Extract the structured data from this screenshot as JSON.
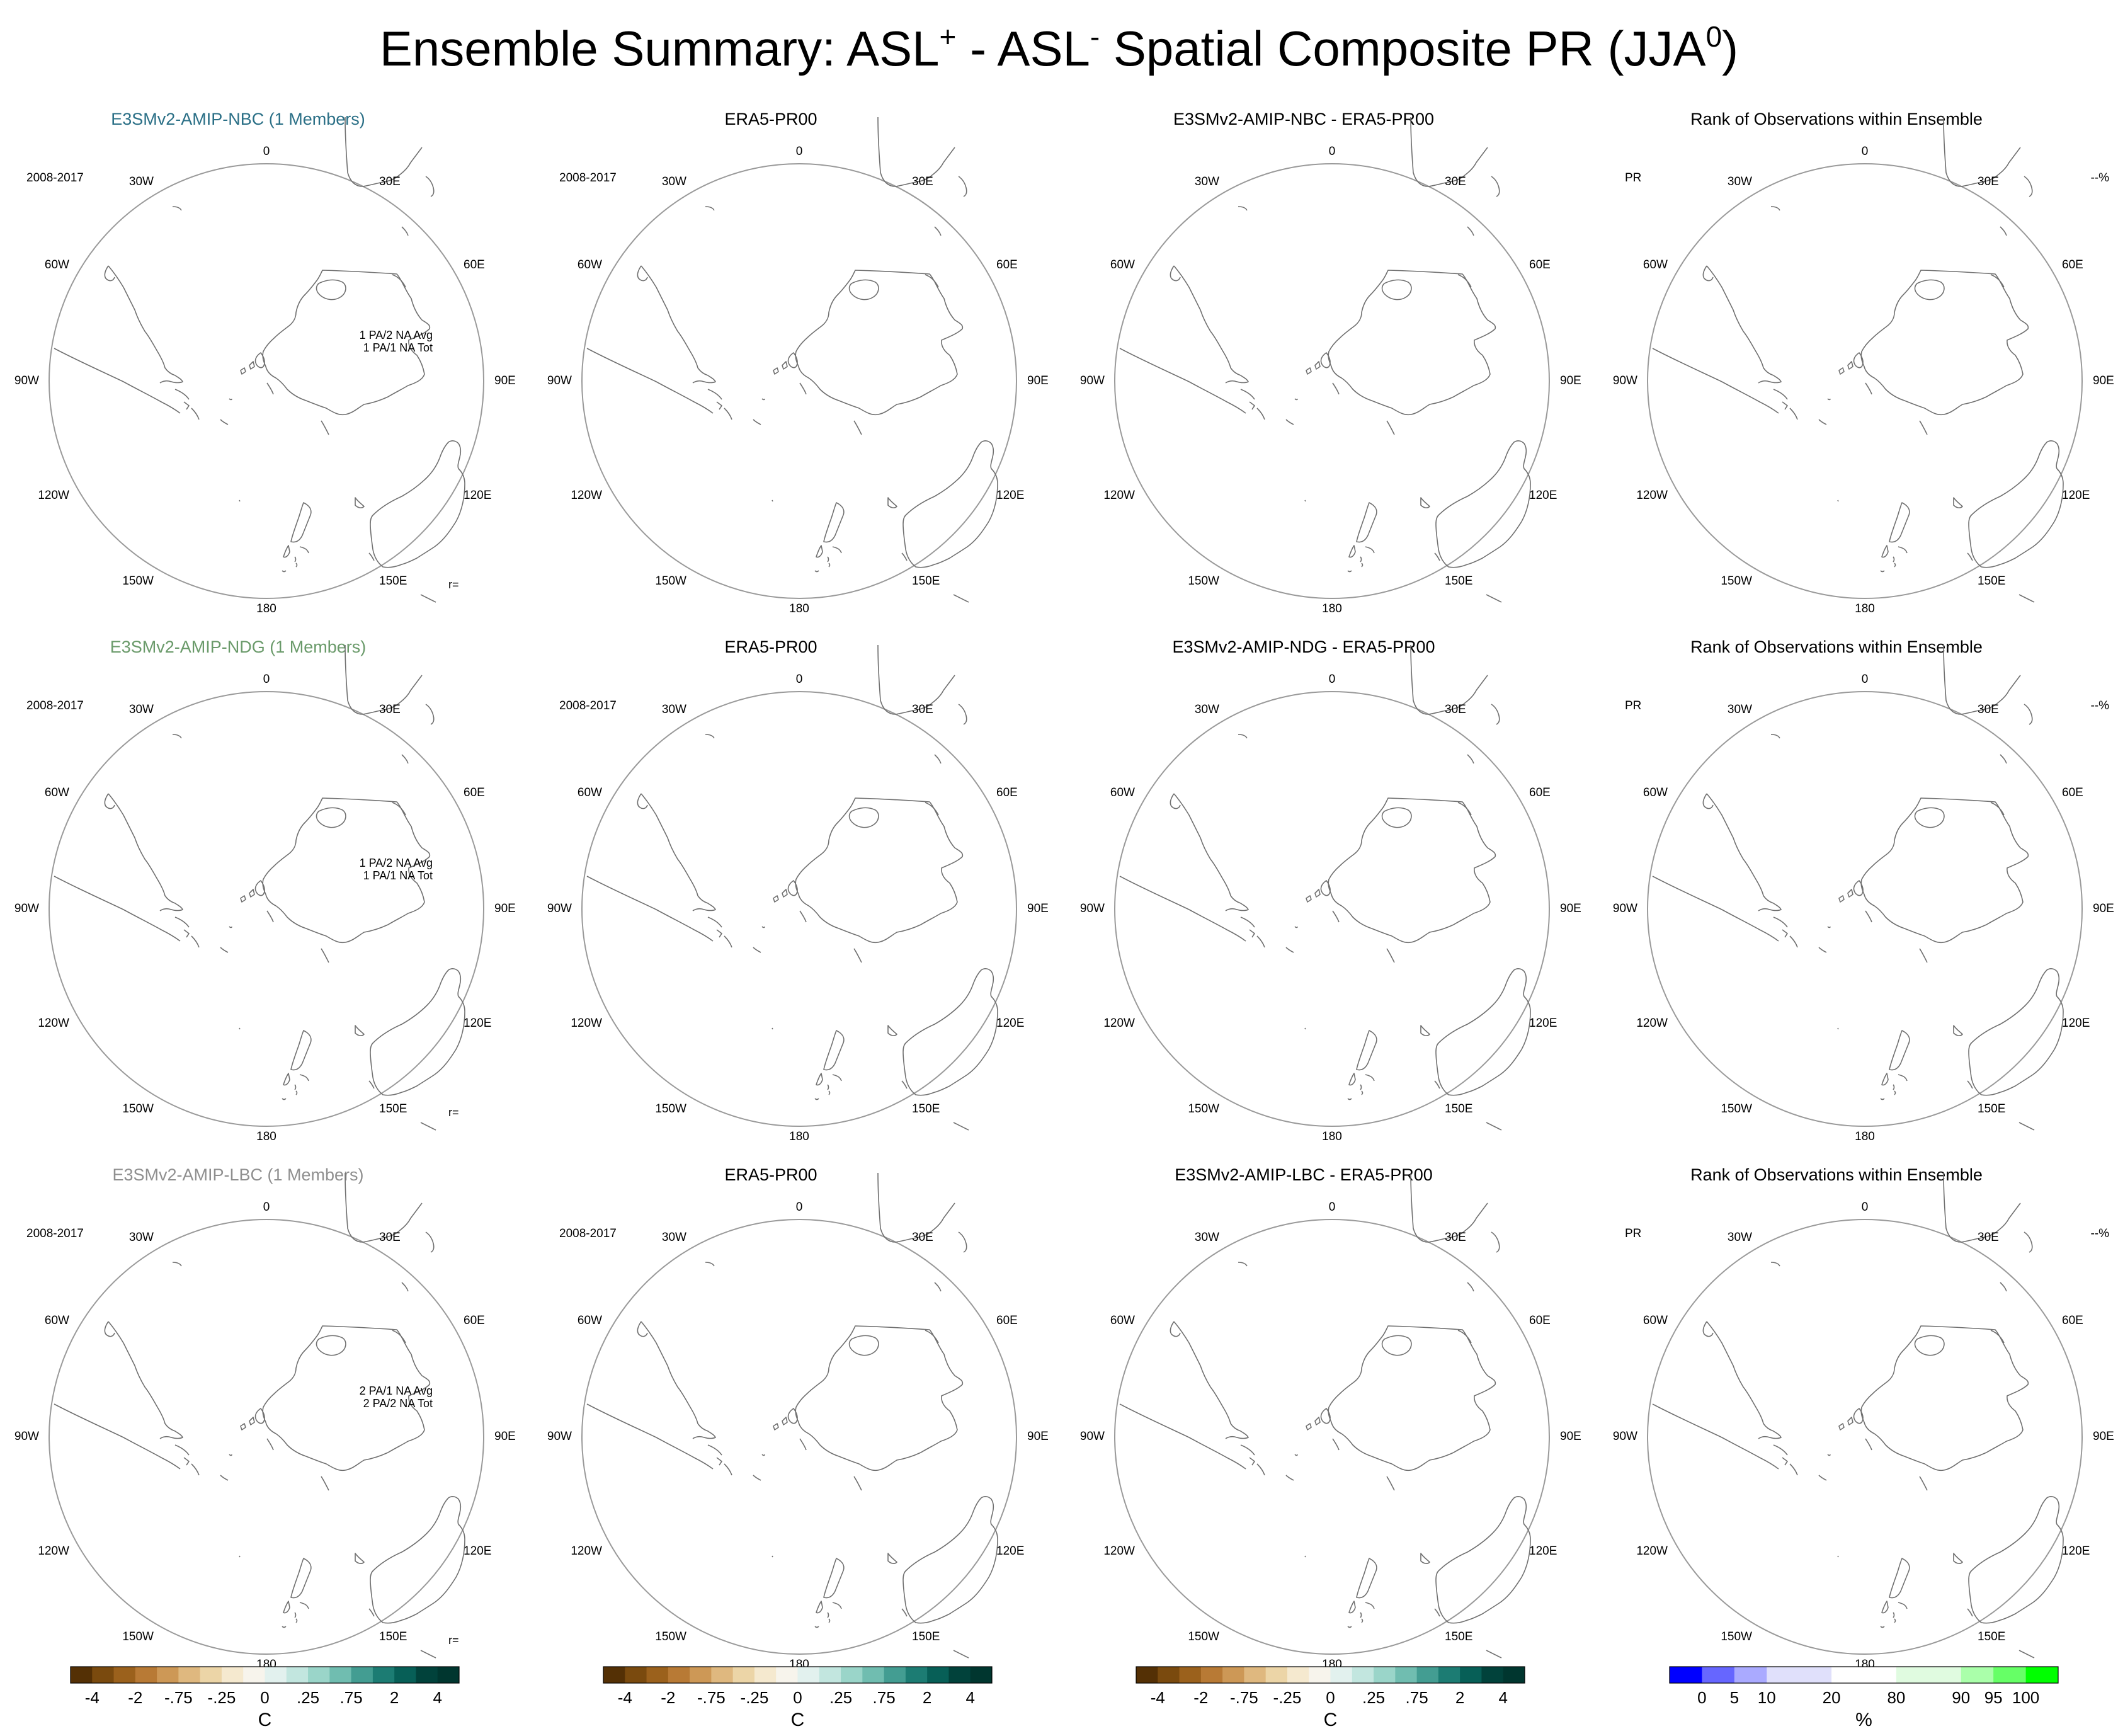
{
  "title": {
    "prefix": "Ensemble Summary: ASL",
    "sup1": "+",
    "mid": " - ASL",
    "sup2": "-",
    "suffix": " Spatial Composite PR (JJA",
    "sup3": "0",
    "end": ")"
  },
  "chart_data": {
    "type": "map",
    "projection": "south-polar stereographic (circular)",
    "grid_labels": {
      "top": "0",
      "bottom": "180",
      "left": [
        "30W",
        "60W",
        "90W",
        "120W",
        "150W"
      ],
      "right": [
        "30E",
        "60E",
        "90E",
        "120E",
        "150E"
      ]
    },
    "rows": [
      {
        "panels": [
          {
            "title": "E3SMv2-AMIP-NBC (1 Members)",
            "title_color": "#2a6f86",
            "top_left": "2008-2017",
            "top_right": "",
            "stats": [
              "1 PA/2 NA Avg",
              "1 PA/1 NA Tot"
            ],
            "bottom_right": "r="
          },
          {
            "title": "ERA5-PR00",
            "title_color": "#000000",
            "top_left": "2008-2017",
            "top_right": "",
            "stats": [],
            "bottom_right": ""
          },
          {
            "title": "E3SMv2-AMIP-NBC - ERA5-PR00",
            "title_color": "#000000",
            "top_left": "",
            "top_right": "",
            "stats": [],
            "bottom_right": ""
          },
          {
            "title": "Rank of Observations within Ensemble",
            "title_color": "#000000",
            "top_left": "PR",
            "top_right": "--%",
            "stats": [],
            "bottom_right": ""
          }
        ]
      },
      {
        "panels": [
          {
            "title": "E3SMv2-AMIP-NDG (1 Members)",
            "title_color": "#6a9a6a",
            "top_left": "2008-2017",
            "top_right": "",
            "stats": [
              "1 PA/2 NA Avg",
              "1 PA/1 NA Tot"
            ],
            "bottom_right": "r="
          },
          {
            "title": "ERA5-PR00",
            "title_color": "#000000",
            "top_left": "2008-2017",
            "top_right": "",
            "stats": [],
            "bottom_right": ""
          },
          {
            "title": "E3SMv2-AMIP-NDG - ERA5-PR00",
            "title_color": "#000000",
            "top_left": "",
            "top_right": "",
            "stats": [],
            "bottom_right": ""
          },
          {
            "title": "Rank of Observations within Ensemble",
            "title_color": "#000000",
            "top_left": "PR",
            "top_right": "--%",
            "stats": [],
            "bottom_right": ""
          }
        ]
      },
      {
        "panels": [
          {
            "title": "E3SMv2-AMIP-LBC (1 Members)",
            "title_color": "#8f8f8f",
            "top_left": "2008-2017",
            "top_right": "",
            "stats": [
              "2 PA/1 NA Avg",
              "2 PA/2 NA Tot"
            ],
            "bottom_right": "r="
          },
          {
            "title": "ERA5-PR00",
            "title_color": "#000000",
            "top_left": "2008-2017",
            "top_right": "",
            "stats": [],
            "bottom_right": ""
          },
          {
            "title": "E3SMv2-AMIP-LBC - ERA5-PR00",
            "title_color": "#000000",
            "top_left": "",
            "top_right": "",
            "stats": [],
            "bottom_right": ""
          },
          {
            "title": "Rank of Observations within Ensemble",
            "title_color": "#000000",
            "top_left": "PR",
            "top_right": "--%",
            "stats": [],
            "bottom_right": ""
          }
        ]
      }
    ],
    "colorbars": [
      {
        "name": "anomaly",
        "count": 3,
        "unit": "C",
        "ticks": [
          "-4",
          "-2",
          "-.75",
          "-.25",
          "0",
          ".25",
          ".75",
          "2",
          "4"
        ],
        "colors": [
          "#543005",
          "#7a4a0e",
          "#9b611c",
          "#b87a35",
          "#cd9856",
          "#dfb87f",
          "#ecd5a7",
          "#f5e9cf",
          "#f7f4ec",
          "#e2f1ee",
          "#c2e6df",
          "#9ad5c9",
          "#70bdb0",
          "#439d92",
          "#1c7c73",
          "#075f57",
          "#01423b",
          "#00362f"
        ]
      },
      {
        "name": "rank",
        "count": 1,
        "unit": "%",
        "ticks": [
          "0",
          "5",
          "10",
          "20",
          "80",
          "90",
          "95",
          "100"
        ],
        "tick_slots": [
          1,
          2,
          3,
          5,
          7,
          9,
          10,
          11
        ],
        "colors": [
          "#0000ff",
          "#6666ff",
          "#aaaaff",
          "#e0e0fb",
          "#e0e0fb",
          "#ffffff",
          "#ffffff",
          "#e0fbe0",
          "#e0fbe0",
          "#aaffaa",
          "#66ff66",
          "#00ff00"
        ]
      }
    ]
  }
}
